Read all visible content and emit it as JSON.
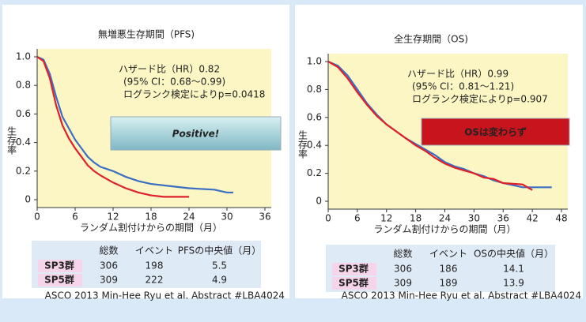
{
  "chart_data": [
    {
      "type": "line",
      "title": "無増悪生存期間（PFS)",
      "x_label": "ランダム割付けからの期間（月）",
      "y_label": "生存率",
      "annotations": [
        "ハザード比（HR）0.82",
        "(95% CI：0.68～0.99)",
        "ログランク検定によりp=0.0418"
      ],
      "callout": "Positive!",
      "source": "ASCO 2013 Min-Hee Ryu et al. Abstract #LBA4024",
      "xlim": [
        0,
        36
      ],
      "xticks": [
        0,
        6,
        12,
        18,
        24,
        30,
        36
      ],
      "ylim": [
        0,
        1
      ],
      "yticks": [
        0,
        0.2,
        0.4,
        0.6,
        0.8,
        {
          "value": 1,
          "label": "1.0"
        }
      ],
      "series": [
        {
          "name": "SP3群",
          "color": "#3a6fc4",
          "x": [
            0,
            1,
            2,
            3,
            4,
            5,
            6,
            7,
            8,
            9,
            10,
            12,
            14,
            16,
            18,
            20,
            24,
            28,
            30,
            31
          ],
          "values": [
            1,
            0.98,
            0.88,
            0.72,
            0.58,
            0.5,
            0.42,
            0.36,
            0.3,
            0.26,
            0.23,
            0.2,
            0.16,
            0.13,
            0.11,
            0.1,
            0.08,
            0.07,
            0.05,
            0.05
          ]
        },
        {
          "name": "SP5群",
          "color": "#e0202a",
          "x": [
            0,
            1,
            2,
            3,
            4,
            5,
            6,
            7,
            8,
            9,
            10,
            12,
            14,
            16,
            18,
            20,
            24
          ],
          "values": [
            1,
            0.97,
            0.85,
            0.66,
            0.52,
            0.43,
            0.36,
            0.3,
            0.24,
            0.2,
            0.17,
            0.12,
            0.08,
            0.05,
            0.03,
            0.02,
            0.02
          ]
        }
      ],
      "table": {
        "columns": [
          "総数",
          "イベント",
          "PFSの中央値（月）"
        ],
        "rows": [
          [
            306,
            198,
            5.5
          ],
          [
            309,
            222,
            4.9
          ]
        ]
      }
    },
    {
      "type": "line",
      "title": "全生存期間（OS)",
      "x_label": "ランダム割付けからの期間（月）",
      "y_label": "生存率",
      "annotations": [
        "ハザード比（HR）0.99",
        "(95% CI：0.81～1.21)",
        "ログランク検定によりp=0.907"
      ],
      "callout": "OSは変わらず",
      "source": "ASCO 2013 Min-Hee Ryu et al. Abstract #LBA4024",
      "xlim": [
        0,
        48
      ],
      "xticks": [
        0,
        6,
        12,
        18,
        24,
        30,
        36,
        42,
        48
      ],
      "ylim": [
        0,
        1
      ],
      "yticks": [
        0,
        0.2,
        0.4,
        0.6,
        0.8,
        {
          "value": 1,
          "label": "1.0"
        }
      ],
      "series": [
        {
          "name": "SP3群",
          "color": "#3a6fc4",
          "x": [
            0,
            2,
            4,
            6,
            8,
            10,
            12,
            14,
            16,
            18,
            20,
            22,
            24,
            26,
            28,
            30,
            32,
            34,
            36,
            40,
            46
          ],
          "values": [
            1,
            0.97,
            0.9,
            0.8,
            0.7,
            0.62,
            0.55,
            0.5,
            0.45,
            0.41,
            0.37,
            0.33,
            0.28,
            0.25,
            0.23,
            0.2,
            0.18,
            0.15,
            0.13,
            0.1,
            0.1
          ]
        },
        {
          "name": "SP5群",
          "color": "#e0202a",
          "x": [
            0,
            2,
            4,
            6,
            8,
            10,
            12,
            14,
            16,
            18,
            20,
            22,
            24,
            26,
            28,
            30,
            32,
            34,
            36,
            40,
            42
          ],
          "values": [
            1,
            0.96,
            0.88,
            0.78,
            0.69,
            0.61,
            0.55,
            0.5,
            0.45,
            0.4,
            0.36,
            0.31,
            0.27,
            0.24,
            0.22,
            0.2,
            0.17,
            0.16,
            0.13,
            0.12,
            0.08
          ]
        }
      ],
      "table": {
        "columns": [
          "総数",
          "イベント",
          "OSの中央値（月）"
        ],
        "rows": [
          [
            306,
            186,
            14.1
          ],
          [
            309,
            189,
            13.9
          ]
        ]
      }
    }
  ]
}
